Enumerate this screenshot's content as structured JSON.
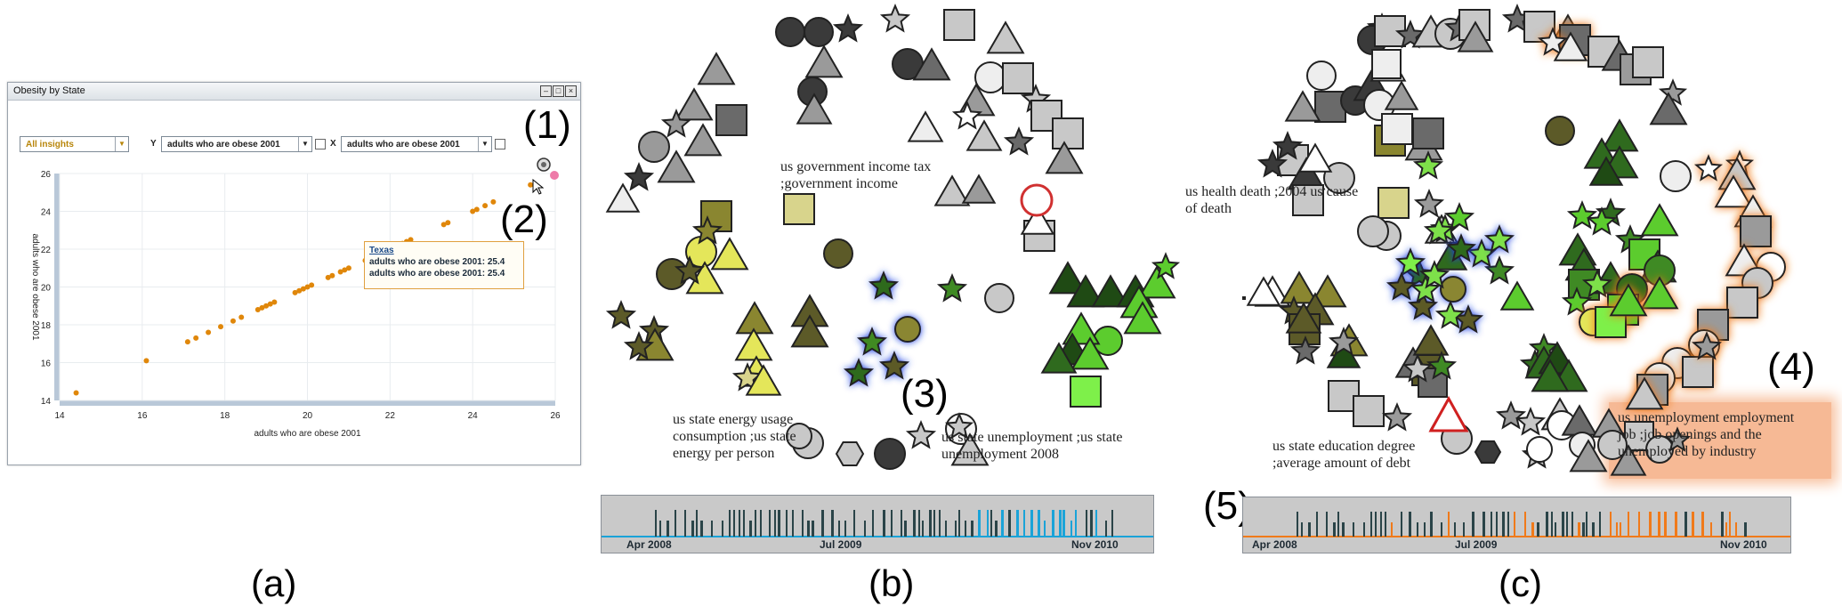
{
  "figure_labels": {
    "a": "(a)",
    "b": "(b)",
    "c": "(c)"
  },
  "callouts": {
    "c1": "(1)",
    "c2": "(2)",
    "c3": "(3)",
    "c4": "(4)",
    "c5": "(5)"
  },
  "window": {
    "title": "Obesity by State",
    "insight_select": "All insights",
    "y_label": "Y",
    "y_select": "adults who are obese 2001",
    "x_label": "X",
    "x_select": "adults who are obese 2001",
    "tooltip": {
      "state": "Texas",
      "line1": "adults who are obese 2001: 25.4",
      "line2": "adults who are obese 2001: 25.4"
    }
  },
  "chart_data": {
    "type": "scatter",
    "xlabel": "adults who are obese 2001",
    "ylabel": "adults who are obese 2001",
    "xlim": [
      14,
      26
    ],
    "ylim": [
      14,
      26
    ],
    "xticks": [
      "14",
      "16",
      "18",
      "20",
      "22",
      "24",
      "26"
    ],
    "yticks": [
      "14",
      "16",
      "18",
      "20",
      "22",
      "24",
      "26"
    ],
    "grid": true,
    "color": "#e0870a",
    "points": [
      14.4,
      16.1,
      17.1,
      17.3,
      17.6,
      17.9,
      18.2,
      18.4,
      18.8,
      18.9,
      19.0,
      19.1,
      19.2,
      19.7,
      19.8,
      19.9,
      20.0,
      20.1,
      20.5,
      20.6,
      20.8,
      20.9,
      21.0,
      21.4,
      21.8,
      21.9,
      22.0,
      22.3,
      22.4,
      22.5,
      23.3,
      23.4,
      24.0,
      24.1,
      24.3,
      24.5,
      25.4
    ]
  },
  "panel_b": {
    "labels": [
      "us government income tax ;government income",
      "us state energy usage consumption ;us state energy per person",
      "us state unemployment ;us state unemployment 2008"
    ],
    "timeline": {
      "start": "Apr 2008",
      "mid": "Jul 2009",
      "end": "Nov 2010",
      "highlight_color": "#1aa3d8"
    }
  },
  "panel_c": {
    "labels": [
      "us health death ;2004 us cause of death",
      "us state education degree ;average amount of debt",
      "us unemployment employment job ;job openings and the unemployed by industry"
    ],
    "timeline": {
      "start": "Apr 2008",
      "mid": "Jul 2009",
      "end": "Nov 2010",
      "highlight_color": "#f07a1a"
    }
  },
  "colors": {
    "accent_blue": "#1a3fe0",
    "accent_orange": "#f07a1a",
    "bar_dark": "#2a4448"
  }
}
